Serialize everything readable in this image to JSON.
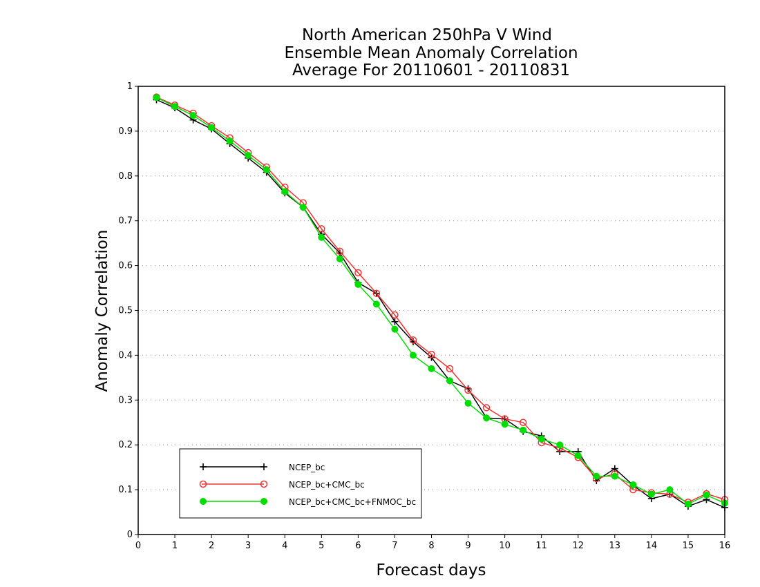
{
  "chart_data": {
    "type": "line",
    "title_lines": [
      "North American 250hPa V Wind",
      "Ensemble Mean Anomaly Correlation",
      "Average For 20110601 - 20110831"
    ],
    "xlabel": "Forecast days",
    "ylabel": "Anomaly Correlation",
    "xlim": [
      0,
      16
    ],
    "ylim": [
      0,
      1
    ],
    "x_ticks": [
      "0",
      "1",
      "2",
      "3",
      "4",
      "5",
      "6",
      "7",
      "8",
      "9",
      "10",
      "11",
      "12",
      "13",
      "14",
      "15",
      "16"
    ],
    "y_ticks": [
      "0",
      "0.1",
      "0.2",
      "0.3",
      "0.4",
      "0.5",
      "0.6",
      "0.7",
      "0.8",
      "0.9",
      "1"
    ],
    "grid": "horizontal-dotted",
    "legend_position": "bottom-left",
    "x": [
      0.5,
      1,
      1.5,
      2,
      2.5,
      3,
      3.5,
      4,
      4.5,
      5,
      5.5,
      6,
      6.5,
      7,
      7.5,
      8,
      8.5,
      9,
      9.5,
      10,
      10.5,
      11,
      11.5,
      12,
      12.5,
      13,
      13.5,
      14,
      14.5,
      15,
      15.5,
      16
    ],
    "series": [
      {
        "name": "NCEP_bc",
        "color": "#000000",
        "marker": "plus",
        "values": [
          0.97,
          0.952,
          0.925,
          0.905,
          0.872,
          0.84,
          0.808,
          0.762,
          0.73,
          0.67,
          0.628,
          0.562,
          0.538,
          0.475,
          0.43,
          0.395,
          0.343,
          0.325,
          0.26,
          0.258,
          0.23,
          0.22,
          0.185,
          0.185,
          0.12,
          0.147,
          0.11,
          0.08,
          0.09,
          0.063,
          0.078,
          0.06
        ]
      },
      {
        "name": "NCEP_bc+CMC_bc",
        "color": "#ee3333",
        "marker": "open-circle",
        "values": [
          0.976,
          0.958,
          0.94,
          0.912,
          0.885,
          0.852,
          0.82,
          0.775,
          0.74,
          0.682,
          0.632,
          0.584,
          0.538,
          0.49,
          0.434,
          0.402,
          0.37,
          0.322,
          0.283,
          0.258,
          0.25,
          0.205,
          0.193,
          0.172,
          0.125,
          0.135,
          0.1,
          0.093,
          0.09,
          0.072,
          0.091,
          0.078
        ]
      },
      {
        "name": "NCEP_bc+CMC_bc+FNMOC_bc",
        "color": "#00dd00",
        "marker": "filled-circle",
        "values": [
          0.975,
          0.955,
          0.935,
          0.908,
          0.878,
          0.846,
          0.814,
          0.765,
          0.73,
          0.663,
          0.615,
          0.558,
          0.514,
          0.458,
          0.4,
          0.37,
          0.343,
          0.293,
          0.26,
          0.246,
          0.233,
          0.213,
          0.2,
          0.176,
          0.13,
          0.13,
          0.111,
          0.09,
          0.1,
          0.068,
          0.088,
          0.07
        ]
      }
    ]
  }
}
